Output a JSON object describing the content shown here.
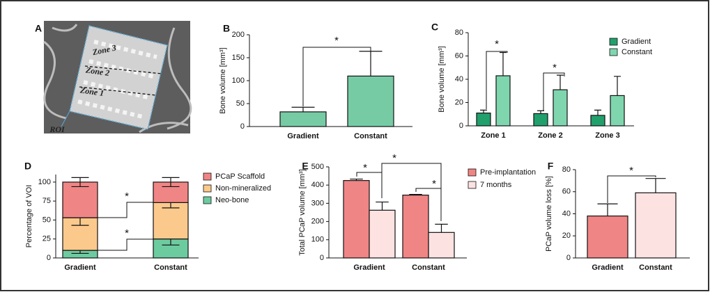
{
  "chart_data": [
    {
      "type": "image",
      "label": "A",
      "annotations": [
        "Zone 3",
        "Zone 2",
        "Zone 1",
        "ROI"
      ]
    },
    {
      "type": "bar",
      "label": "B",
      "y_label": "Bone volume [mm³]",
      "categories": [
        "Gradient",
        "Constant"
      ],
      "series": [
        {
          "values": [
            32,
            110
          ],
          "errors": [
            10,
            54
          ],
          "color": "#76cba5"
        }
      ],
      "ylim": [
        0,
        200
      ],
      "yticks": [
        0,
        50,
        100,
        150,
        200
      ],
      "annotations": [
        "*"
      ]
    },
    {
      "type": "bar",
      "label": "C",
      "y_label": "Bone volume [mm³]",
      "categories": [
        "Zone 1",
        "Zone 2",
        "Zone 3"
      ],
      "series": [
        {
          "name": "Gradient",
          "values": [
            11,
            10.5,
            9
          ],
          "errors": [
            2.5,
            2.5,
            4.5
          ],
          "color": "#21a06c"
        },
        {
          "name": "Constant",
          "values": [
            43,
            31,
            26
          ],
          "errors": [
            20,
            12.5,
            16.5
          ],
          "color": "#7fd6ae"
        }
      ],
      "ylim": [
        0,
        80
      ],
      "yticks": [
        0,
        20,
        40,
        60,
        80
      ],
      "legend": "top right",
      "annotations": [
        "*",
        "*"
      ]
    },
    {
      "type": "stacked_bar",
      "label": "D",
      "y_label": "Percentage of VOI",
      "categories": [
        "Gradient",
        "Constant"
      ],
      "series": [
        {
          "name": "Neo-bone",
          "values": [
            10,
            25
          ],
          "errors": [
            4,
            8
          ],
          "color": "#6dcba0"
        },
        {
          "name": "Non-mineralized",
          "values": [
            43,
            48
          ],
          "errors": [
            10,
            7
          ],
          "color": "#fcc98c"
        },
        {
          "name": "PCaP Scaffold",
          "values": [
            47,
            27
          ],
          "errors": [
            6,
            6
          ],
          "color": "#f08585"
        }
      ],
      "ylim": [
        0,
        110
      ],
      "yticks": [
        0,
        25,
        50,
        75,
        100
      ],
      "legend": "right",
      "annotations": [
        "*",
        "*"
      ]
    },
    {
      "type": "bar",
      "label": "E",
      "y_label": "Total PCaP volume [mm³]",
      "categories": [
        "Gradient",
        "Constant"
      ],
      "series": [
        {
          "name": "Pre-implantation",
          "values": [
            425,
            345
          ],
          "errors": [
            8,
            4
          ],
          "color": "#f08585"
        },
        {
          "name": "7 months",
          "values": [
            262,
            140
          ],
          "errors": [
            45,
            45
          ],
          "color": "#fde2e2"
        }
      ],
      "ylim": [
        0,
        500
      ],
      "yticks": [
        0,
        100,
        200,
        300,
        400,
        500
      ],
      "legend": "top right",
      "annotations": [
        "*",
        "*",
        "*"
      ]
    },
    {
      "type": "bar",
      "label": "F",
      "y_label": "PCaP volume loss [%]",
      "categories": [
        "Gradient",
        "Constant"
      ],
      "series": [
        {
          "values": [
            38,
            59
          ],
          "errors": [
            11,
            13
          ],
          "colors": [
            "#f08585",
            "#fde2e2"
          ]
        }
      ],
      "ylim": [
        0,
        80
      ],
      "yticks": [
        0,
        20,
        40,
        60,
        80
      ],
      "annotations": [
        "*"
      ]
    }
  ]
}
